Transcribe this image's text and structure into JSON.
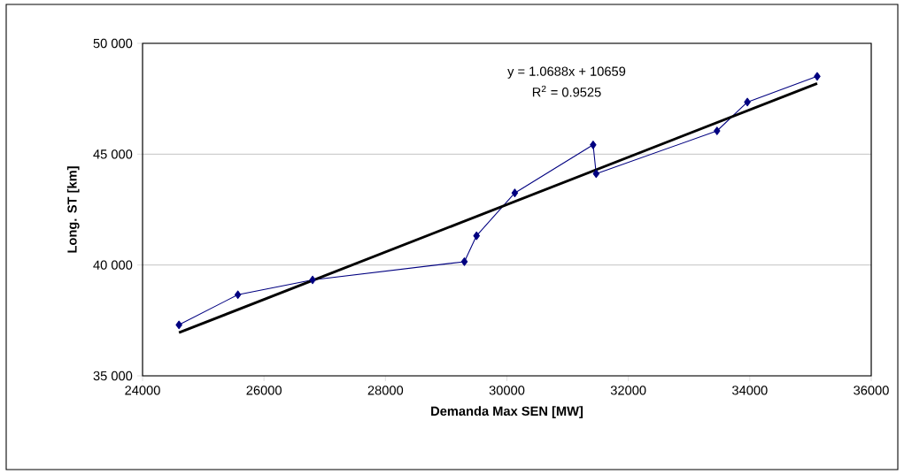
{
  "chart_data": {
    "type": "line",
    "xlabel": "Demanda Max SEN [MW]",
    "ylabel": "Long. ST [km]",
    "x": [
      24600,
      25570,
      26800,
      29300,
      29500,
      30130,
      31420,
      31470,
      33460,
      33960,
      35110
    ],
    "series": [
      {
        "color": "#000080",
        "marker": "diamond",
        "values": [
          37300,
          38660,
          39330,
          40150,
          41320,
          43250,
          45420,
          44120,
          46050,
          47350,
          48510
        ]
      },
      {
        "type": "line",
        "color": "#000000",
        "marker": "none",
        "x": [
          24600,
          35110
        ],
        "values": [
          36950,
          48190
        ]
      }
    ],
    "xlim": [
      24000,
      36000
    ],
    "xticks": [
      24000,
      26000,
      28000,
      30000,
      32000,
      34000,
      36000
    ],
    "ylim": [
      35000,
      50000
    ],
    "yticks": [
      {
        "value": 35000,
        "label": "35 000"
      },
      {
        "value": 40000,
        "label": "40 000"
      },
      {
        "value": 45000,
        "label": "45 000"
      },
      {
        "value": 50000,
        "label": "50 000"
      }
    ],
    "grid": "y",
    "legend": false,
    "annotations": [
      "y = 1.0688x + 10659",
      "R$^{2}$ = 0.9525"
    ]
  }
}
